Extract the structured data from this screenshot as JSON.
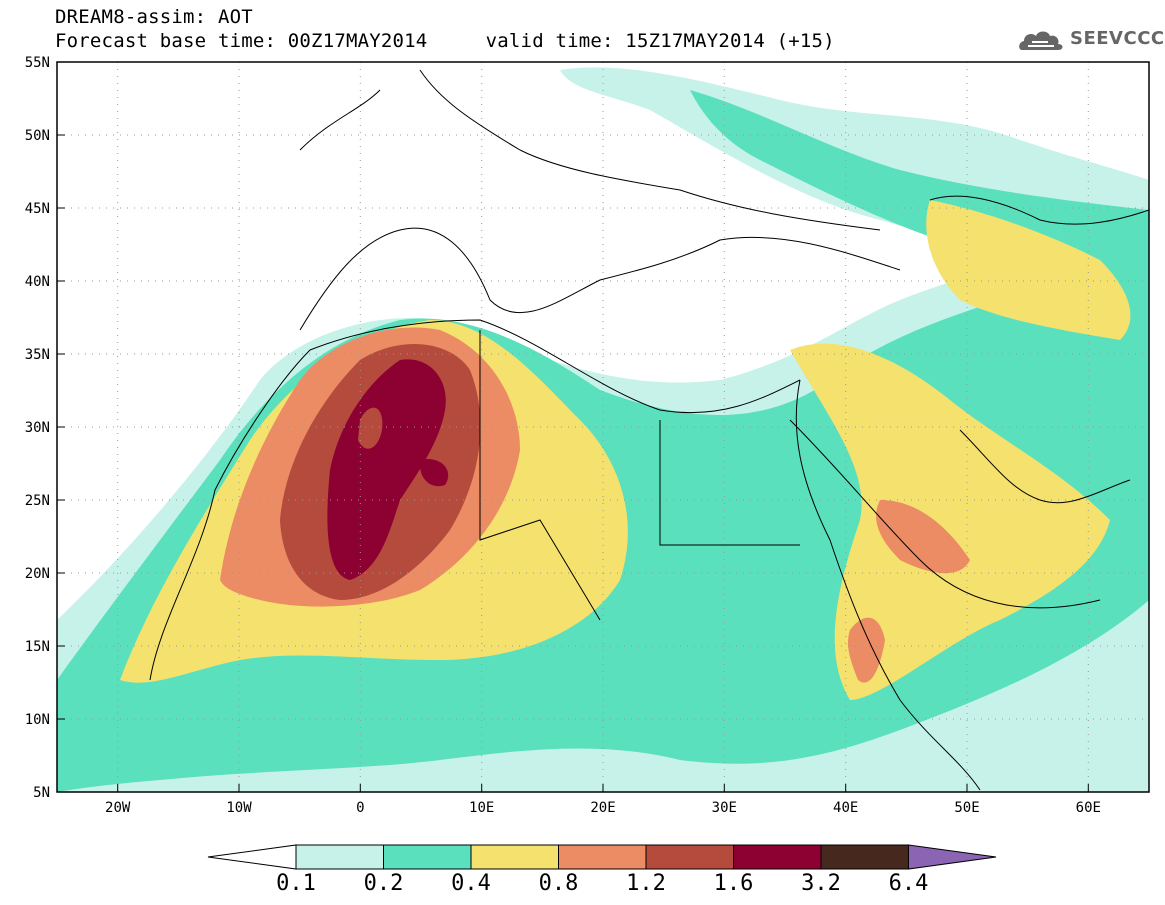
{
  "header": {
    "title_line1": "DREAM8-assim: AOT",
    "title_line2": "Forecast base time: 00Z17MAY2014     valid time: 15Z17MAY2014 (+15)"
  },
  "logo": {
    "text": "SEEVCCC",
    "icon": "cloud-logo-icon"
  },
  "map": {
    "lat_labels": [
      "55N",
      "50N",
      "45N",
      "40N",
      "35N",
      "30N",
      "25N",
      "20N",
      "15N",
      "10N",
      "5N"
    ],
    "lon_labels": [
      "20W",
      "10W",
      "0",
      "10E",
      "20E",
      "30E",
      "40E",
      "50E",
      "60E"
    ],
    "grid": "dotted",
    "lon_range": [
      -25,
      65
    ],
    "lat_range": [
      5,
      55
    ],
    "field": "Aerosol optical thickness"
  },
  "colorbar": {
    "labels": [
      "0.1",
      "0.2",
      "0.4",
      "0.8",
      "1.2",
      "1.6",
      "3.2",
      "6.4"
    ],
    "colors": [
      "#ffffff",
      "#c6f2ea",
      "#5ae0bd",
      "#f5e16e",
      "#eb8c64",
      "#b44b3c",
      "#8c0032",
      "#46281e",
      "#8c64b4"
    ]
  }
}
